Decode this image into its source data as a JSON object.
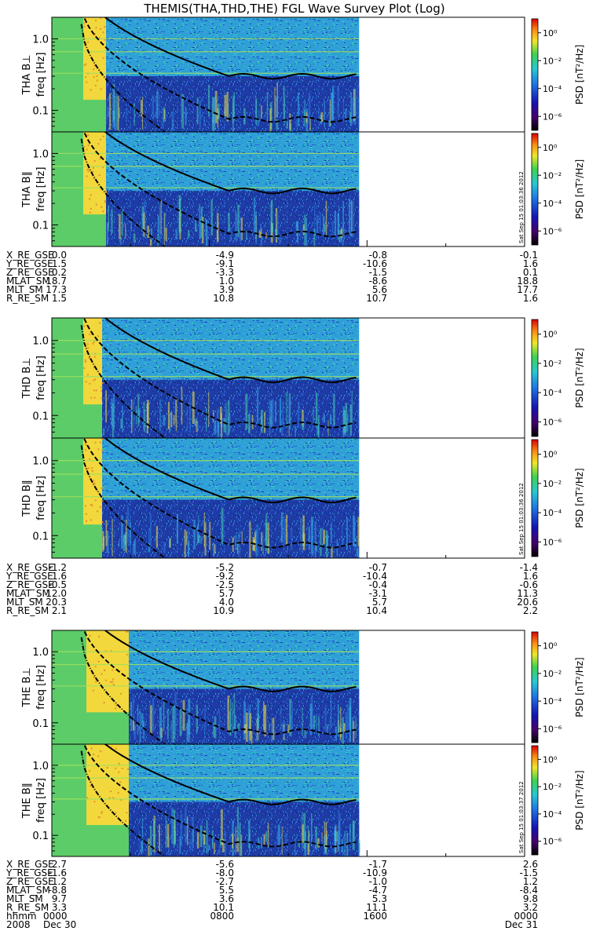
{
  "title": "THEMIS(THA,THD,THE) FGL Wave Survey Plot (Log)",
  "colors": {
    "data_low": "#1a2a9a",
    "data_mid": "#2f9fd8",
    "data_high": "#f3e03a",
    "line": "#000000"
  },
  "chart_data": {
    "type": "heatmap",
    "x_range_hours": [
      0,
      24
    ],
    "data_end_hour": 15.6,
    "y_scale": "log",
    "y_range_hz": [
      0.05,
      2.0
    ],
    "y_ticks": [
      "1.0",
      "0.1"
    ],
    "colorbar": {
      "scale": "log",
      "range": [
        1e-07,
        10
      ],
      "label": "PSD [nT²/Hz]",
      "ticks": [
        "10⁰",
        "10⁻²",
        "10⁻⁴",
        "10⁻⁶"
      ]
    },
    "panels": [
      {
        "name": "THA B⊥",
        "ylabel": "freq [Hz]",
        "stamp": ""
      },
      {
        "name": "THA B∥",
        "ylabel": "freq [Hz]",
        "stamp": "Sat Sep 15 01:03:36 2012"
      },
      {
        "name": "THD B⊥",
        "ylabel": "freq [Hz]",
        "stamp": ""
      },
      {
        "name": "THD B∥",
        "ylabel": "freq [Hz]",
        "stamp": "Sat Sep 15 01:03:36 2012"
      },
      {
        "name": "THE B⊥",
        "ylabel": "freq [Hz]",
        "stamp": ""
      },
      {
        "name": "THE B∥",
        "ylabel": "freq [Hz]",
        "stamp": "Sat Sep 15 01:03:37 2012"
      }
    ],
    "ephemeris": [
      {
        "probe": "THA",
        "rows": [
          {
            "label": "X_RE_GSE",
            "values": [
              "0.0",
              "-4.9",
              "-0.8",
              "-0.1"
            ]
          },
          {
            "label": "Y_RE_GSE",
            "values": [
              "1.5",
              "-9.1",
              "-10.6",
              "1.6"
            ]
          },
          {
            "label": "Z_RE_GSE",
            "values": [
              "0.2",
              "-3.3",
              "-1.5",
              "0.1"
            ]
          },
          {
            "label": "MLAT_SM",
            "values": [
              "18.7",
              "1.0",
              "-8.6",
              "18.8"
            ]
          },
          {
            "label": "MLT_SM",
            "values": [
              "17.3",
              "3.9",
              "5.6",
              "17.7"
            ]
          },
          {
            "label": "R_RE_SM",
            "values": [
              "1.5",
              "10.8",
              "10.7",
              "1.6"
            ]
          }
        ]
      },
      {
        "probe": "THD",
        "rows": [
          {
            "label": "X_RE_GSE",
            "values": [
              "-1.2",
              "-5.2",
              "-0.7",
              "-1.4"
            ]
          },
          {
            "label": "Y_RE_GSE",
            "values": [
              "1.6",
              "-9.2",
              "-10.4",
              "1.6"
            ]
          },
          {
            "label": "Z_RE_GSE",
            "values": [
              "-0.5",
              "-2.5",
              "-0.4",
              "-0.6"
            ]
          },
          {
            "label": "MLAT_SM",
            "values": [
              "12.0",
              "5.7",
              "-3.1",
              "11.3"
            ]
          },
          {
            "label": "MLT_SM",
            "values": [
              "20.3",
              "4.0",
              "5.7",
              "20.6"
            ]
          },
          {
            "label": "R_RE_SM",
            "values": [
              "2.1",
              "10.9",
              "10.4",
              "2.2"
            ]
          }
        ]
      },
      {
        "probe": "THE",
        "rows": [
          {
            "label": "X_RE_GSE",
            "values": [
              "2.7",
              "-5.6",
              "-1.7",
              "2.6"
            ]
          },
          {
            "label": "Y_RE_GSE",
            "values": [
              "-1.6",
              "-8.0",
              "-10.9",
              "-1.5"
            ]
          },
          {
            "label": "Z_RE_GSE",
            "values": [
              "1.2",
              "-2.7",
              "-1.0",
              "1.2"
            ]
          },
          {
            "label": "MLAT_SM",
            "values": [
              "-8.8",
              "5.5",
              "-4.7",
              "-8.4"
            ]
          },
          {
            "label": "MLT_SM",
            "values": [
              "9.7",
              "3.6",
              "5.3",
              "9.8"
            ]
          },
          {
            "label": "R_RE_SM",
            "values": [
              "3.3",
              "10.1",
              "11.1",
              "3.2"
            ]
          },
          {
            "label": "hhmm",
            "values": [
              "0000",
              "0800",
              "1600",
              "0000"
            ]
          }
        ]
      }
    ],
    "date_row": {
      "year": "2008",
      "start": "Dec 30",
      "end": "Dec 31"
    }
  }
}
